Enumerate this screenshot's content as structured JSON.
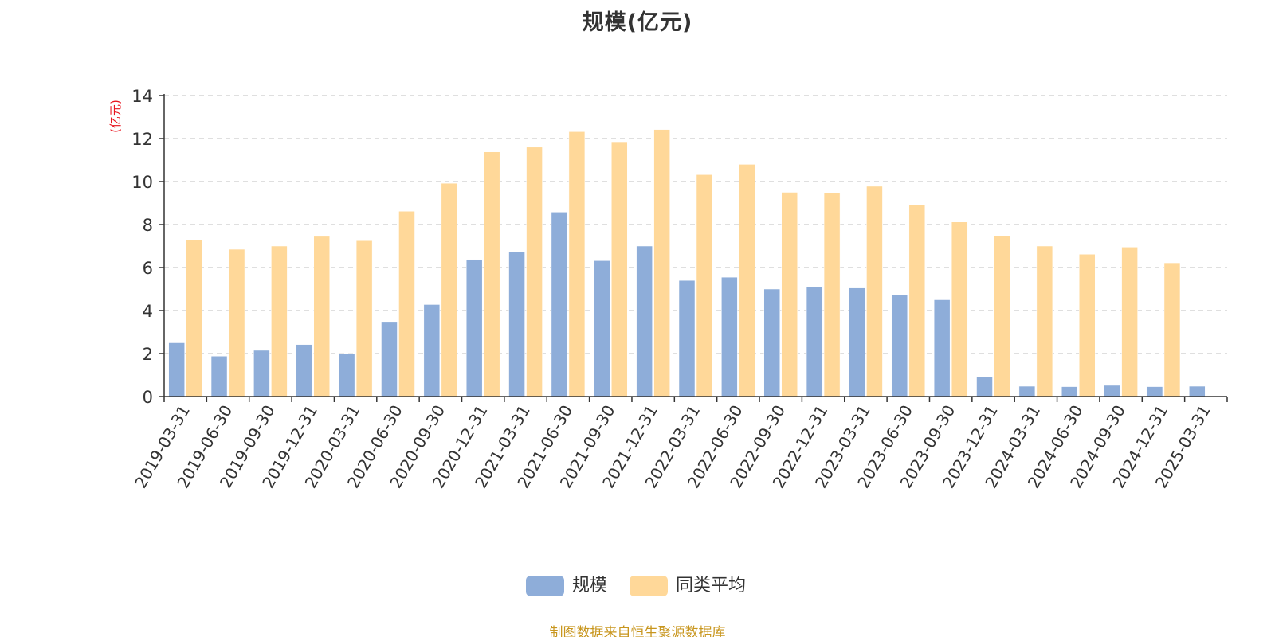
{
  "chart_data": {
    "type": "bar",
    "title": "规模(亿元)",
    "ylabel": "(亿元)",
    "ylim": [
      0,
      14
    ],
    "yticks": [
      0,
      2,
      4,
      6,
      8,
      10,
      12,
      14
    ],
    "grid": true,
    "legend_position": "bottom-center",
    "categories": [
      "2019-03-31",
      "2019-06-30",
      "2019-09-30",
      "2019-12-31",
      "2020-03-31",
      "2020-06-30",
      "2020-09-30",
      "2020-12-31",
      "2021-03-31",
      "2021-06-30",
      "2021-09-30",
      "2021-12-31",
      "2022-03-31",
      "2022-06-30",
      "2022-09-30",
      "2022-12-31",
      "2023-03-31",
      "2023-06-30",
      "2023-09-30",
      "2023-12-31",
      "2024-03-31",
      "2024-06-30",
      "2024-09-30",
      "2024-12-31",
      "2025-03-31"
    ],
    "series": [
      {
        "name": "规模",
        "color": "#8eadd9",
        "values": [
          2.5,
          1.88,
          2.15,
          2.42,
          2.0,
          3.45,
          4.28,
          6.38,
          6.72,
          8.58,
          6.32,
          7.0,
          5.4,
          5.55,
          5.0,
          5.12,
          5.05,
          4.72,
          4.5,
          0.92,
          0.48,
          0.46,
          0.52,
          0.46,
          0.48
        ]
      },
      {
        "name": "同类平均",
        "color": "#ffd899",
        "values": [
          7.28,
          6.85,
          7.0,
          7.45,
          7.25,
          8.62,
          9.92,
          11.38,
          11.6,
          12.32,
          11.85,
          12.42,
          10.32,
          10.8,
          9.5,
          9.48,
          9.78,
          8.92,
          8.12,
          7.48,
          7.0,
          6.62,
          6.95,
          6.22,
          null
        ]
      }
    ]
  },
  "source_note": "制图数据来自恒生聚源数据库"
}
